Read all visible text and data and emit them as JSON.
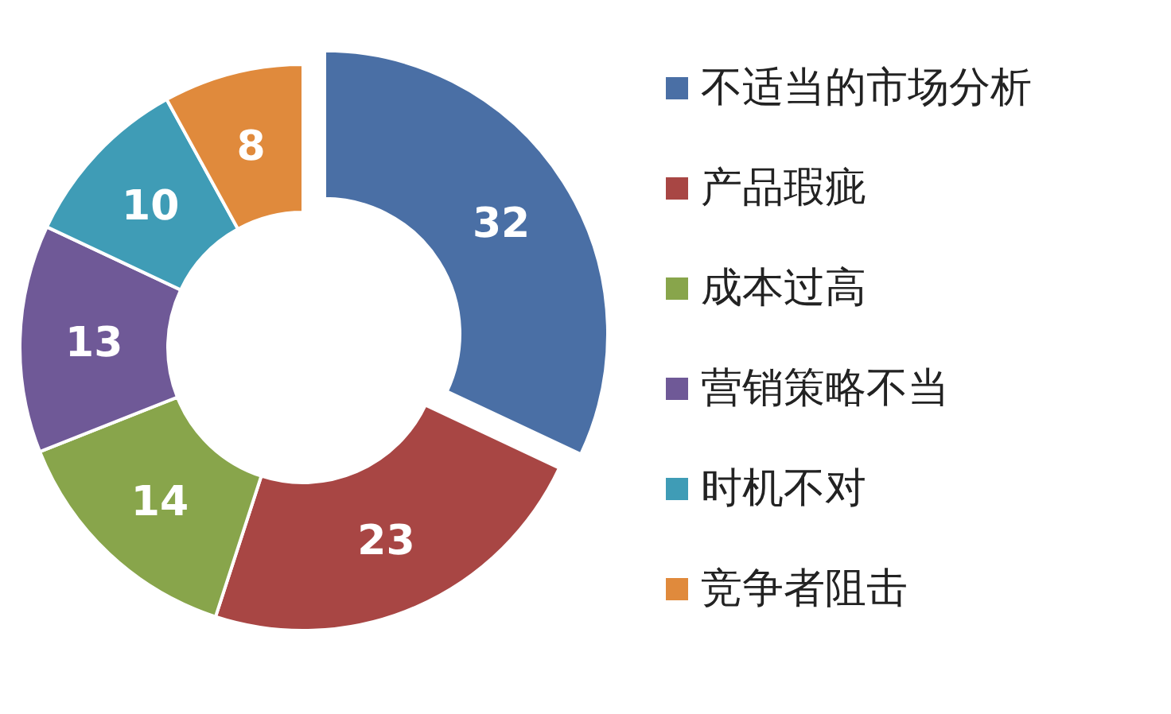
{
  "chart_data": {
    "type": "donut",
    "categories": [
      "不适当的市场分析",
      "产品瑕疵",
      "成本过高",
      "营销策略不当",
      "时机不对",
      "竞争者阻击"
    ],
    "values": [
      32,
      23,
      14,
      13,
      10,
      8
    ],
    "colors": [
      "#4a6fa5",
      "#a84644",
      "#88a54b",
      "#6f5997",
      "#3f9cb6",
      "#e08a3c"
    ],
    "data_labels": true,
    "legend": "right"
  }
}
